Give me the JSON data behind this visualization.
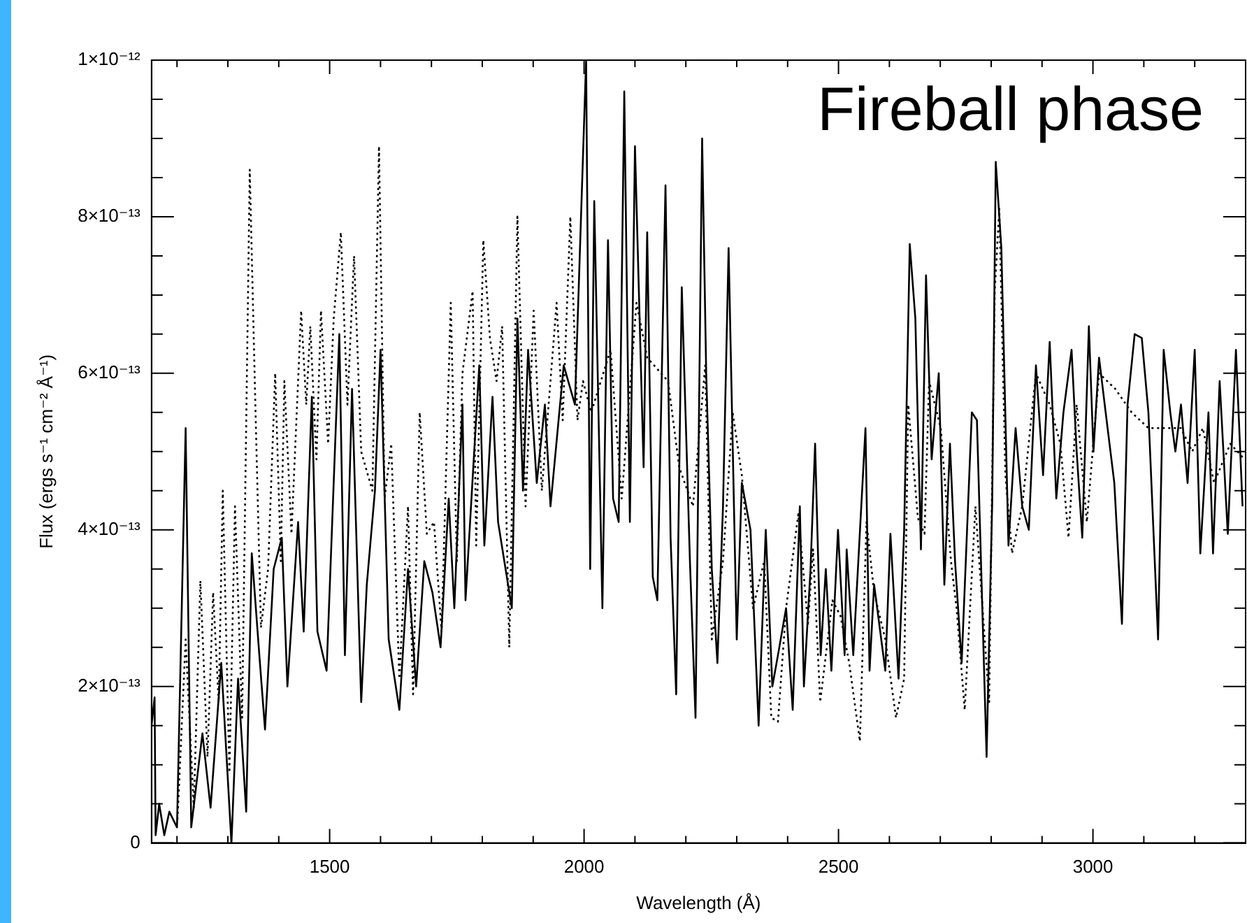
{
  "chart_data": {
    "type": "line",
    "xlabel": "Wavelength (Å)",
    "ylabel": "Flux (ergs s⁻¹ cm⁻² Å⁻¹)",
    "annotations": [
      "Fireball phase"
    ],
    "xlim": [
      1150,
      3300
    ],
    "ylim": [
      0,
      1e-12
    ],
    "grid": false,
    "legend": false,
    "marker": "none",
    "xticks": [
      {
        "value": 1200,
        "label": null
      },
      {
        "value": 1300,
        "label": null
      },
      {
        "value": 1400,
        "label": null
      },
      1500,
      {
        "value": 1600,
        "label": null
      },
      {
        "value": 1700,
        "label": null
      },
      {
        "value": 1800,
        "label": null
      },
      {
        "value": 1900,
        "label": null
      },
      2000,
      {
        "value": 2100,
        "label": null
      },
      {
        "value": 2200,
        "label": null
      },
      {
        "value": 2300,
        "label": null
      },
      {
        "value": 2400,
        "label": null
      },
      2500,
      {
        "value": 2600,
        "label": null
      },
      {
        "value": 2700,
        "label": null
      },
      {
        "value": 2800,
        "label": null
      },
      {
        "value": 2900,
        "label": null
      },
      3000,
      {
        "value": 3100,
        "label": null
      },
      {
        "value": 3200,
        "label": null
      }
    ],
    "yticks": [
      0,
      {
        "value": 5e-14,
        "label": null
      },
      {
        "value": 1e-13,
        "label": null
      },
      {
        "value": 1.5e-13,
        "label": null
      },
      {
        "value": 2e-13,
        "label": "2×10⁻¹³"
      },
      {
        "value": 2.5e-13,
        "label": null
      },
      {
        "value": 3e-13,
        "label": null
      },
      {
        "value": 3.5e-13,
        "label": null
      },
      {
        "value": 4e-13,
        "label": "4×10⁻¹³"
      },
      {
        "value": 4.5e-13,
        "label": null
      },
      {
        "value": 5e-13,
        "label": null
      },
      {
        "value": 5.5e-13,
        "label": null
      },
      {
        "value": 6e-13,
        "label": "6×10⁻¹³"
      },
      {
        "value": 6.5e-13,
        "label": null
      },
      {
        "value": 7e-13,
        "label": null
      },
      {
        "value": 7.5e-13,
        "label": null
      },
      {
        "value": 8e-13,
        "label": "8×10⁻¹³"
      },
      {
        "value": 8.5e-13,
        "label": null
      },
      {
        "value": 9e-13,
        "label": null
      },
      {
        "value": 9.5e-13,
        "label": null
      },
      {
        "value": 1e-12,
        "label": "1×10⁻¹²"
      }
    ],
    "series": [
      {
        "color": "#000000",
        "line_style": "solid",
        "x": [
          1150,
          1156,
          1158,
          1165,
          1175,
          1185,
          1200,
          1217,
          1228,
          1250,
          1266,
          1287,
          1307,
          1320,
          1336,
          1347,
          1363,
          1373,
          1390,
          1406,
          1417,
          1438,
          1449,
          1465,
          1476,
          1494,
          1519,
          1530,
          1544,
          1562,
          1573,
          1589,
          1600,
          1616,
          1637,
          1654,
          1670,
          1686,
          1702,
          1718,
          1734,
          1745,
          1761,
          1767,
          1794,
          1804,
          1820,
          1831,
          1858,
          1869,
          1880,
          1890,
          1907,
          1923,
          1934,
          1960,
          1982,
          2004,
          2012,
          2020,
          2036,
          2047,
          2057,
          2068,
          2079,
          2090,
          2100,
          2117,
          2124,
          2135,
          2144,
          2160,
          2170,
          2181,
          2192,
          2208,
          2219,
          2232,
          2240,
          2251,
          2262,
          2273,
          2284,
          2300,
          2310,
          2327,
          2343,
          2357,
          2370,
          2381,
          2397,
          2410,
          2424,
          2432,
          2445,
          2454,
          2465,
          2475,
          2486,
          2499,
          2512,
          2516,
          2529,
          2553,
          2561,
          2570,
          2592,
          2602,
          2618,
          2629,
          2640,
          2651,
          2662,
          2672,
          2683,
          2697,
          2708,
          2719,
          2729,
          2742,
          2762,
          2772,
          2791,
          2802,
          2809,
          2820,
          2834,
          2848,
          2861,
          2874,
          2888,
          2902,
          2915,
          2928,
          2942,
          2958,
          2968,
          2979,
          2992,
          3001,
          3012,
          3025,
          3042,
          3057,
          3068,
          3082,
          3096,
          3109,
          3128,
          3139,
          3152,
          3162,
          3173,
          3186,
          3200,
          3211,
          3227,
          3236,
          3249,
          3265,
          3281,
          3294
        ],
        "values": [
          1.5e-13,
          1.86e-13,
          1e-14,
          5e-14,
          1e-14,
          4e-14,
          2e-14,
          5.3e-13,
          2e-14,
          1.4e-13,
          4.5e-14,
          2.3e-13,
          0,
          2.1e-13,
          4e-14,
          3.7e-13,
          2.3e-13,
          1.45e-13,
          3.5e-13,
          3.9e-13,
          2e-13,
          4.1e-13,
          2.7e-13,
          5.7e-13,
          2.7e-13,
          2.2e-13,
          6.5e-13,
          2.4e-13,
          5.8e-13,
          1.8e-13,
          3.3e-13,
          4.5e-13,
          6.3e-13,
          2.6e-13,
          1.7e-13,
          3.5e-13,
          2e-13,
          3.6e-13,
          3.2e-13,
          2.5e-13,
          4.4e-13,
          3e-13,
          5.6e-13,
          3.1e-13,
          6.1e-13,
          3.8e-13,
          5.7e-13,
          4.1e-13,
          3e-13,
          6.7e-13,
          4.5e-13,
          6.3e-13,
          4.6e-13,
          5.6e-13,
          4.3e-13,
          6.1e-13,
          5.6e-13,
          1e-12,
          3.5e-13,
          8.2e-13,
          3e-13,
          7.7e-13,
          4.4e-13,
          4.1e-13,
          9.6e-13,
          4.1e-13,
          8.9e-13,
          4.8e-13,
          7.8e-13,
          3.4e-13,
          3.1e-13,
          8.4e-13,
          3.9e-13,
          1.9e-13,
          7.1e-13,
          3.6e-13,
          1.6e-13,
          9e-13,
          6e-13,
          3.5e-13,
          2.3e-13,
          4.3e-13,
          7.6e-13,
          2.6e-13,
          4.6e-13,
          4e-13,
          1.5e-13,
          4e-13,
          2e-13,
          2.4e-13,
          3e-13,
          1.7e-13,
          4.3e-13,
          2e-13,
          3.5e-13,
          5.1e-13,
          2.4e-13,
          3.5e-13,
          2.2e-13,
          4e-13,
          2.4e-13,
          3.75e-13,
          2.4e-13,
          5.3e-13,
          2.2e-13,
          3.3e-13,
          2.2e-13,
          3.95e-13,
          2.1e-13,
          4e-13,
          7.65e-13,
          6.7e-13,
          3.75e-13,
          7.25e-13,
          4.9e-13,
          6e-13,
          3.3e-13,
          5.1e-13,
          3.6e-13,
          2.3e-13,
          5.5e-13,
          5.4e-13,
          1.1e-13,
          4.35e-13,
          8.7e-13,
          7.6e-13,
          3.8e-13,
          5.3e-13,
          4.3e-13,
          4e-13,
          6.1e-13,
          4.7e-13,
          6.4e-13,
          4.4e-13,
          5.5e-13,
          6.3e-13,
          5e-13,
          3.9e-13,
          6.6e-13,
          5e-13,
          6.2e-13,
          5.5e-13,
          4.6e-13,
          2.8e-13,
          5.6e-13,
          6.5e-13,
          6.45e-13,
          5.5e-13,
          2.6e-13,
          6.3e-13,
          5.5e-13,
          5e-13,
          5.6e-13,
          4.6e-13,
          6.3e-13,
          3.7e-13,
          5.5e-13,
          3.7e-13,
          5.9e-13,
          3.95e-13,
          6.3e-13,
          4.3e-13
        ]
      },
      {
        "color": "#000000",
        "line_style": "dotted",
        "x": [
          1201,
          1217,
          1233,
          1246,
          1260,
          1271,
          1282,
          1290,
          1303,
          1314,
          1328,
          1343,
          1354,
          1365,
          1379,
          1393,
          1404,
          1411,
          1425,
          1444,
          1454,
          1462,
          1474,
          1483,
          1497,
          1508,
          1522,
          1535,
          1548,
          1562,
          1584,
          1597,
          1608,
          1621,
          1637,
          1654,
          1664,
          1677,
          1691,
          1705,
          1720,
          1738,
          1750,
          1761,
          1781,
          1788,
          1802,
          1815,
          1828,
          1839,
          1853,
          1869,
          1885,
          1901,
          1917,
          1946,
          1958,
          1973,
          1987,
          1998,
          2014,
          2052,
          2074,
          2103,
          2124,
          2165,
          2187,
          2214,
          2238,
          2251,
          2273,
          2292,
          2310,
          2332,
          2354,
          2368,
          2381,
          2397,
          2421,
          2440,
          2450,
          2464,
          2488,
          2504,
          2521,
          2542,
          2555,
          2570,
          2592,
          2613,
          2629,
          2637,
          2656,
          2669,
          2678,
          2701,
          2721,
          2732,
          2748,
          2769,
          2796,
          2807,
          2816,
          2828,
          2841,
          2861,
          2888,
          2915,
          2936,
          2952,
          2968,
          2988,
          3012,
          3044,
          3076,
          3109,
          3141,
          3173,
          3195,
          3216,
          3238,
          3270,
          3298
        ],
        "values": [
          3e-14,
          2.6e-13,
          4.5e-14,
          3.35e-13,
          1.1e-13,
          3.2e-13,
          1.8e-13,
          4.5e-13,
          9e-14,
          4.3e-13,
          1.6e-13,
          8.6e-13,
          5.6e-13,
          2.75e-13,
          3.5e-13,
          6e-13,
          3.6e-13,
          5.9e-13,
          3.95e-13,
          6.8e-13,
          5.6e-13,
          6.6e-13,
          4.9e-13,
          6.8e-13,
          5.1e-13,
          6.7e-13,
          7.8e-13,
          5.6e-13,
          7.5e-13,
          5e-13,
          4.5e-13,
          8.9e-13,
          4.4e-13,
          5.1e-13,
          2.1e-13,
          4.3e-13,
          1.9e-13,
          5.5e-13,
          3.95e-13,
          4.1e-13,
          2.7e-13,
          6.9e-13,
          3.6e-13,
          6e-13,
          7.05e-13,
          3.8e-13,
          7.7e-13,
          6.45e-13,
          5.9e-13,
          6.6e-13,
          2.5e-13,
          8e-13,
          4.3e-13,
          6.8e-13,
          4.5e-13,
          6.9e-13,
          5.4e-13,
          8e-13,
          5.4e-13,
          5.9e-13,
          5.5e-13,
          6.3e-13,
          4.4e-13,
          6.9e-13,
          6.2e-13,
          5.9e-13,
          4.8e-13,
          4.3e-13,
          6.1e-13,
          2.6e-13,
          3.6e-13,
          5.5e-13,
          4.7e-13,
          3e-13,
          3.6e-13,
          1.6e-13,
          1.55e-13,
          3e-13,
          4.2e-13,
          2.8e-13,
          3.75e-13,
          1.8e-13,
          3.1e-13,
          2.9e-13,
          2.3e-13,
          1.3e-13,
          4.1e-13,
          3.2e-13,
          2.6e-13,
          1.6e-13,
          2.1e-13,
          5.6e-13,
          4.15e-13,
          3.95e-13,
          5.9e-13,
          5.3e-13,
          3.6e-13,
          3e-13,
          1.7e-13,
          4.3e-13,
          1.8e-13,
          7.05e-13,
          8.1e-13,
          4.7e-13,
          3.7e-13,
          4.3e-13,
          6e-13,
          5.6e-13,
          5.1e-13,
          3.9e-13,
          5.6e-13,
          4.1e-13,
          6e-13,
          5.8e-13,
          5.5e-13,
          5.3e-13,
          5.3e-13,
          5.3e-13,
          5e-13,
          5.3e-13,
          4.6e-13,
          5.1e-13,
          4.9e-13
        ]
      }
    ]
  }
}
